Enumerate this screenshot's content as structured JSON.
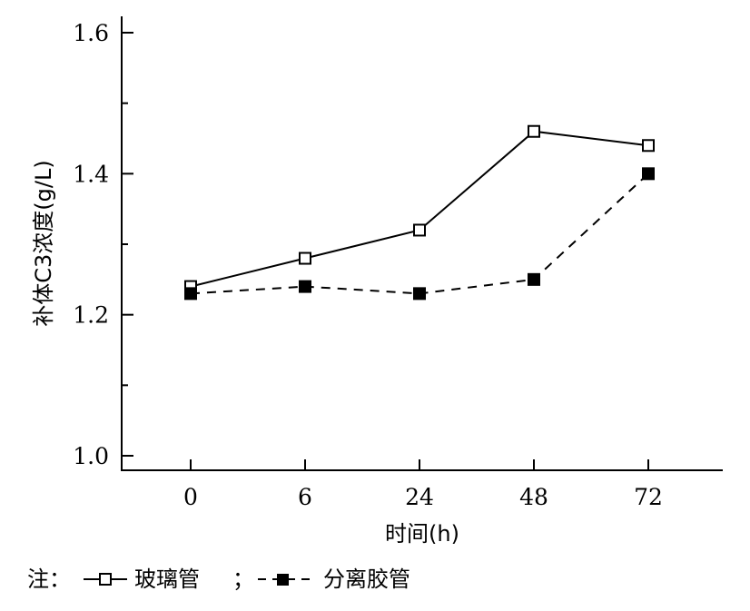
{
  "chart_data": {
    "type": "line",
    "categories": [
      "0",
      "6",
      "24",
      "48",
      "72"
    ],
    "series": [
      {
        "name": "玻璃管",
        "values": [
          1.24,
          1.28,
          1.32,
          1.46,
          1.44
        ],
        "line_style": "solid",
        "marker": "open-square"
      },
      {
        "name": "分离胶管",
        "values": [
          1.23,
          1.24,
          1.23,
          1.25,
          1.4
        ],
        "line_style": "dashed",
        "marker": "filled-square"
      }
    ],
    "xlabel": "时间(h)",
    "ylabel": "补体C3浓度(g/L)",
    "ylim": [
      0.98,
      1.62
    ],
    "yticks_major": [
      "1.0",
      "1.2",
      "1.4",
      "1.6"
    ],
    "yticks_minor": [
      1.1,
      1.3,
      1.5
    ],
    "grid": false,
    "legend_position": "bottom"
  },
  "note": {
    "prefix": "注：",
    "sep": "；"
  }
}
